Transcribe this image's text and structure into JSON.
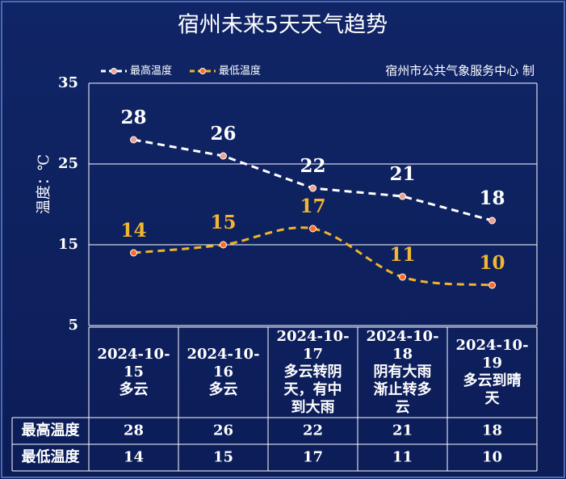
{
  "chart_data": {
    "type": "line",
    "title": "宿州未来5天天气趋势",
    "source": "宿州市公共气象服务中心 制",
    "y_label": "温度：℃",
    "categories": [
      "2024-10-15",
      "2024-10-16",
      "2024-10-17",
      "2024-10-18",
      "2024-10-19"
    ],
    "weather": [
      "多云",
      "多云",
      "多云转阴天，有中到大雨",
      "阴有大雨渐止转多云",
      "多云到晴天"
    ],
    "series": [
      {
        "name": "最高温度",
        "color": "#ffffff",
        "label_color": "#ffffff",
        "marker_color": "#f0a090",
        "values": [
          28,
          26,
          22,
          21,
          18
        ]
      },
      {
        "name": "最低温度",
        "color": "#f0b429",
        "label_color": "#f2b630",
        "marker_color": "#ff6a2a",
        "values": [
          14,
          15,
          17,
          11,
          10
        ]
      }
    ],
    "ylim": [
      5,
      35
    ],
    "yticks": [
      5,
      15,
      25,
      35
    ],
    "grid": true
  }
}
